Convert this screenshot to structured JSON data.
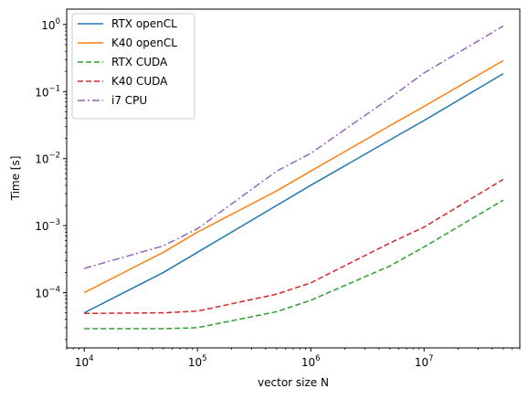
{
  "chart_data": {
    "type": "line",
    "title": "",
    "xlabel": "vector size N",
    "ylabel": "Time [s]",
    "xscale": "log",
    "yscale": "log",
    "xlim": [
      7000,
      70000000
    ],
    "ylim": [
      1.5e-05,
      1.7
    ],
    "xticks": [
      {
        "value": 10000,
        "base": "10",
        "exp": "4"
      },
      {
        "value": 100000,
        "base": "10",
        "exp": "5"
      },
      {
        "value": 1000000,
        "base": "10",
        "exp": "6"
      },
      {
        "value": 10000000,
        "base": "10",
        "exp": "7"
      }
    ],
    "yticks": [
      {
        "value": 0.0001,
        "base": "10",
        "exp": "−4"
      },
      {
        "value": 0.001,
        "base": "10",
        "exp": "−3"
      },
      {
        "value": 0.01,
        "base": "10",
        "exp": "−2"
      },
      {
        "value": 0.1,
        "base": "10",
        "exp": "−1"
      },
      {
        "value": 1,
        "base": "10",
        "exp": "0"
      }
    ],
    "grid": false,
    "legend_position": "top-left",
    "x": [
      10000,
      50000,
      100000,
      500000,
      1000000,
      5000000,
      10000000,
      50000000
    ],
    "series": [
      {
        "name": "RTX openCL",
        "color": "#1f77b4",
        "dash": "solid",
        "values": [
          5e-05,
          0.0002,
          0.0004,
          0.002,
          0.004,
          0.019,
          0.037,
          0.185
        ]
      },
      {
        "name": "K40 openCL",
        "color": "#ff7f0e",
        "dash": "solid",
        "values": [
          0.0001,
          0.0004,
          0.0008,
          0.0033,
          0.0065,
          0.031,
          0.06,
          0.29
        ]
      },
      {
        "name": "RTX CUDA",
        "color": "#2ca02c",
        "dash": "dashed",
        "values": [
          2.9e-05,
          2.9e-05,
          3e-05,
          5.2e-05,
          7.7e-05,
          0.00025,
          0.00048,
          0.0024
        ]
      },
      {
        "name": "K40 CUDA",
        "color": "#d62728",
        "dash": "dashed",
        "values": [
          4.9e-05,
          5e-05,
          5.3e-05,
          9.5e-05,
          0.00014,
          0.00055,
          0.00095,
          0.0049
        ]
      },
      {
        "name": "i7 CPU",
        "color": "#9467bd",
        "dash": "dashdot",
        "values": [
          0.00023,
          0.0005,
          0.0009,
          0.0065,
          0.012,
          0.08,
          0.19,
          0.95
        ]
      }
    ]
  }
}
